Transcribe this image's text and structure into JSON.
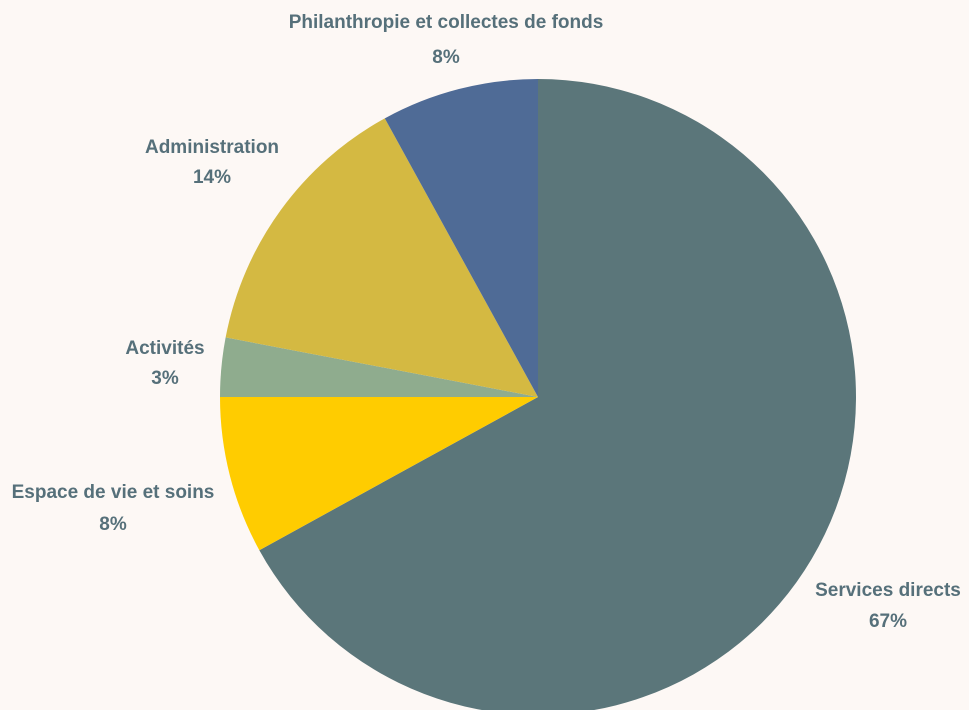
{
  "chart_data": {
    "type": "pie",
    "categories": [
      "Services directs",
      "Espace de vie et soins",
      "Activités",
      "Administration",
      "Philanthropie et collectes de fonds"
    ],
    "values": [
      67,
      8,
      3,
      14,
      8
    ],
    "value_labels": [
      "67%",
      "8%",
      "3%",
      "14%",
      "8%"
    ],
    "colors": [
      "#5b767a",
      "#ffcc00",
      "#8fac8e",
      "#d4b942",
      "#4f6b96"
    ]
  }
}
